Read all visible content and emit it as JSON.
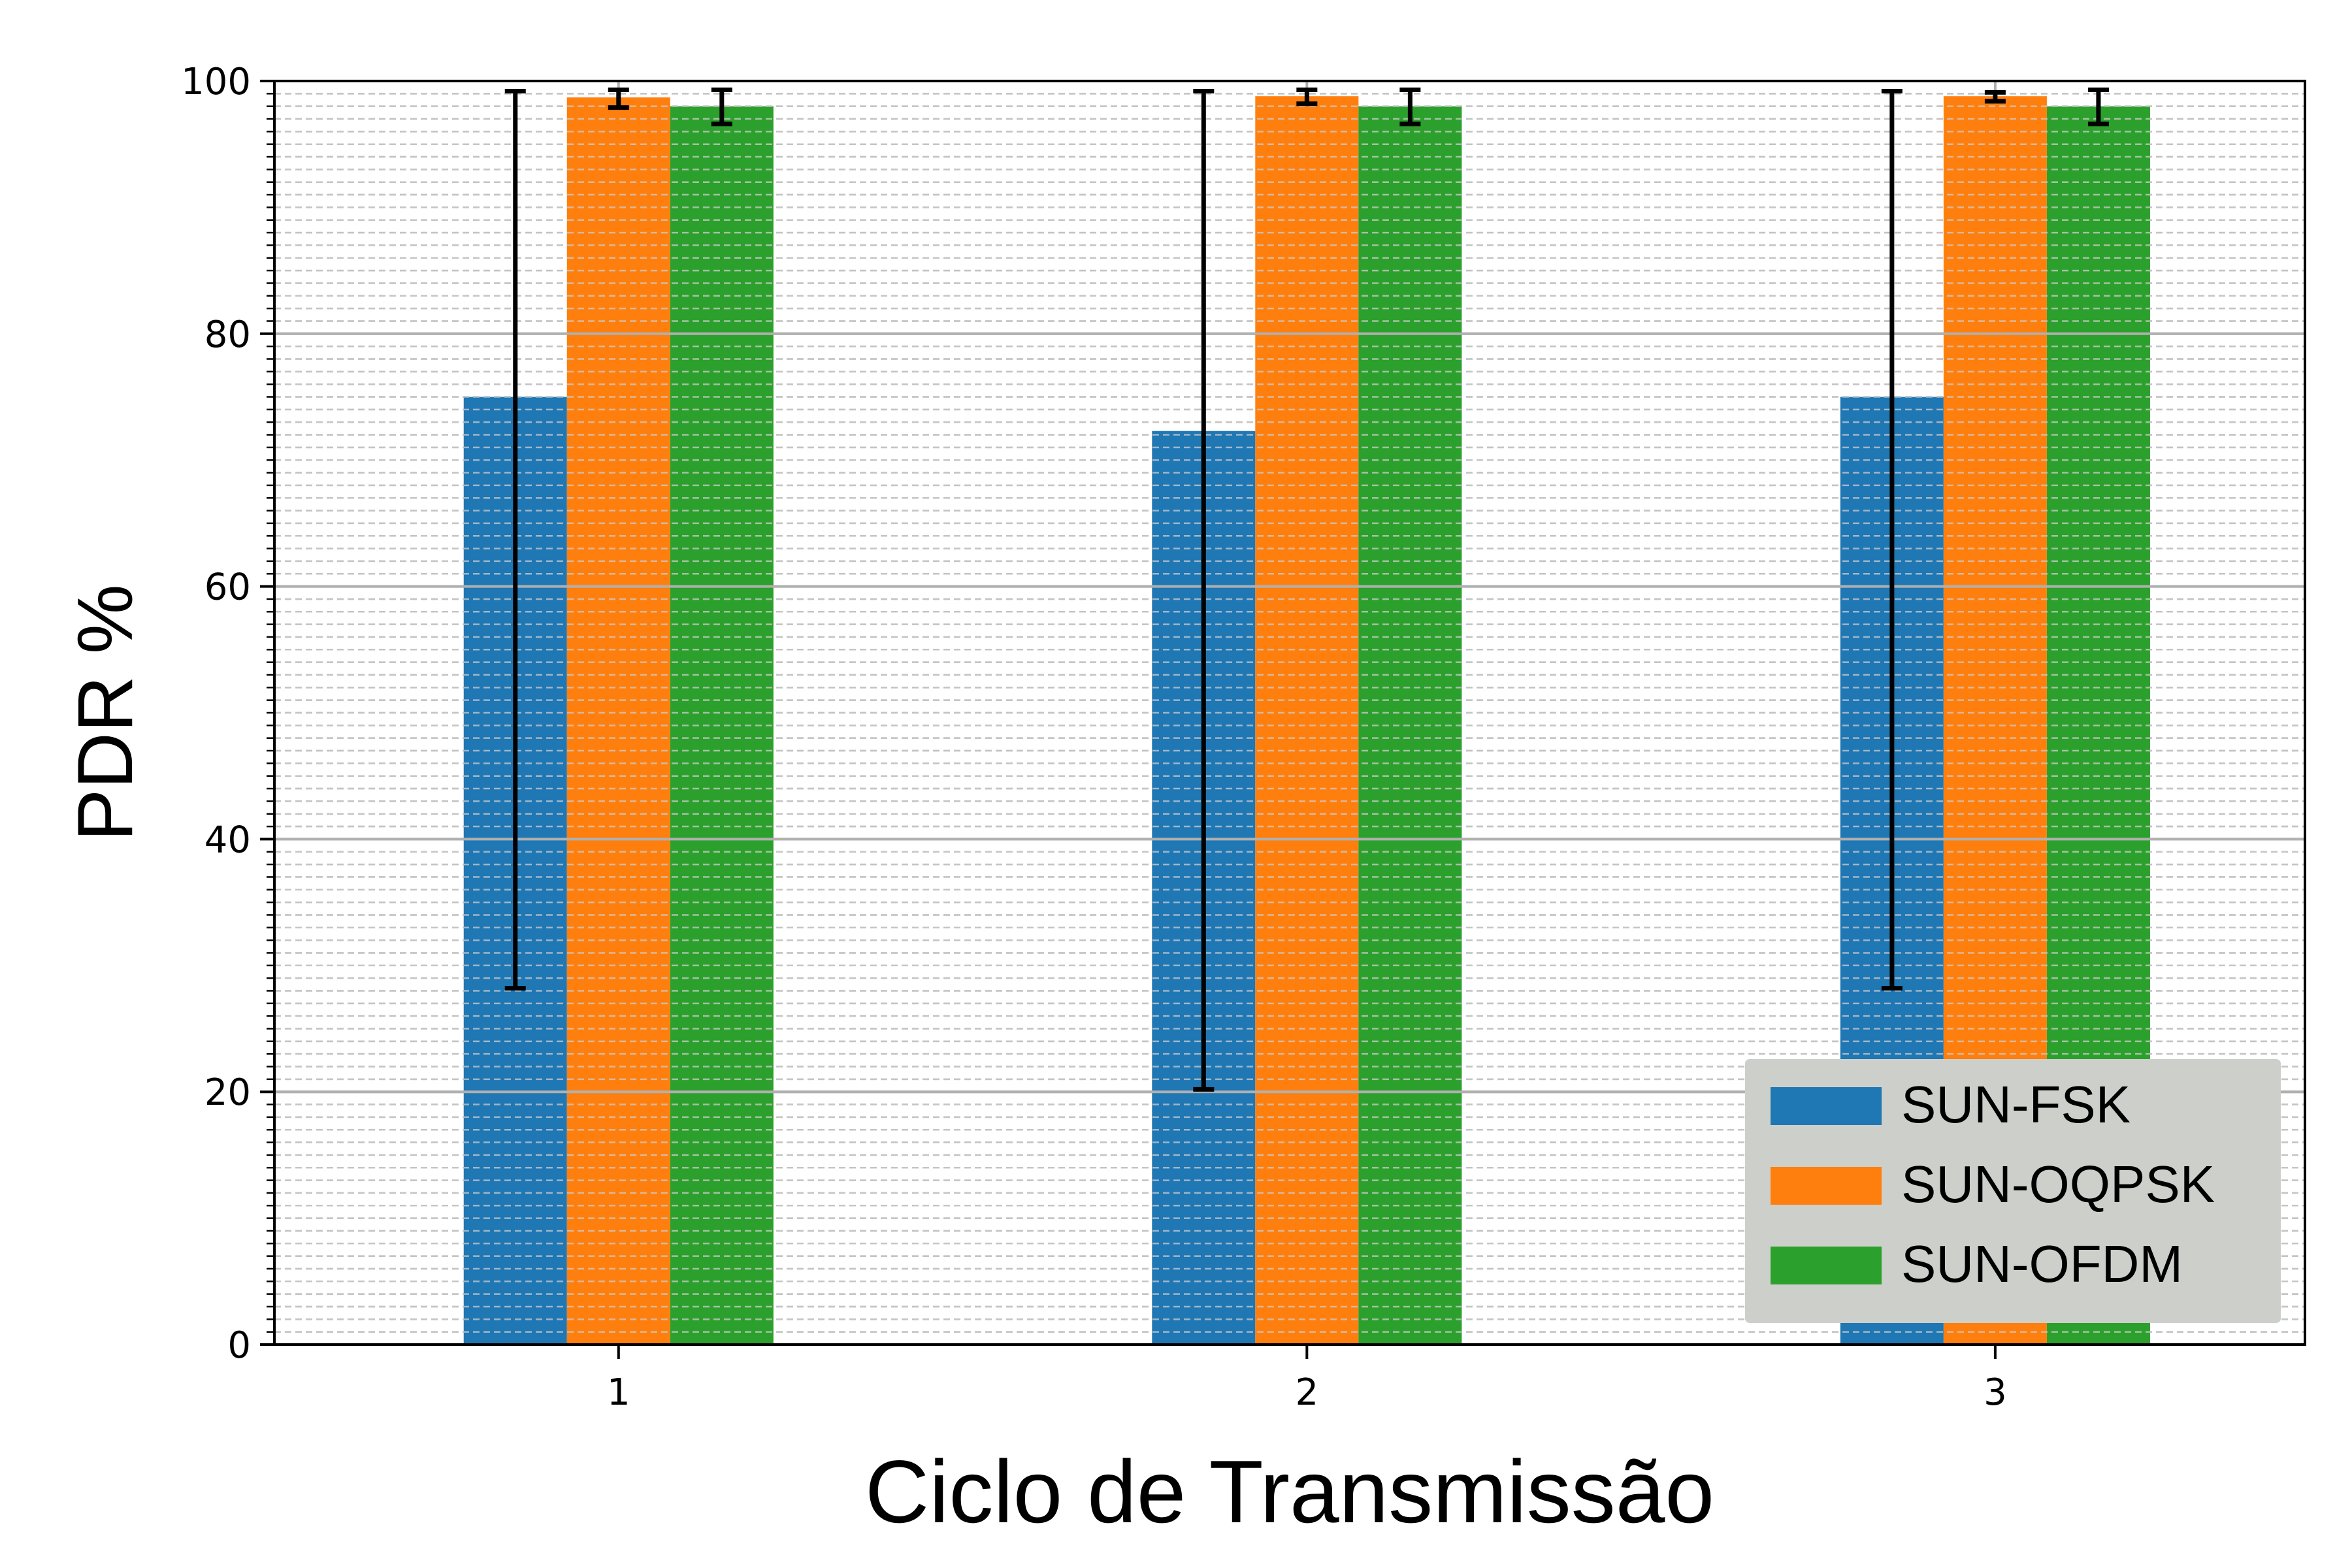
{
  "chart_data": {
    "type": "bar",
    "title": "",
    "xlabel": "Ciclo de Transmissão",
    "ylabel": "PDR %",
    "categories": [
      "1",
      "2",
      "3"
    ],
    "ylim": [
      0,
      100
    ],
    "yticks": [
      "0",
      "20",
      "40",
      "60",
      "80",
      "100"
    ],
    "grid": "major and minor",
    "legend_position": "lower-right",
    "series": [
      {
        "name": "SUN-FSK",
        "color": "#1f77b4",
        "values": [
          75.0,
          72.3,
          75.0
        ],
        "err_low": [
          28.2,
          20.2,
          28.2
        ],
        "err_high": [
          99.2,
          99.2,
          99.2
        ]
      },
      {
        "name": "SUN-OQPSK",
        "color": "#ff7f0e",
        "values": [
          98.7,
          98.8,
          98.8
        ],
        "err_low": [
          97.9,
          98.2,
          98.4
        ],
        "err_high": [
          99.3,
          99.3,
          99.1
        ]
      },
      {
        "name": "SUN-OFDM",
        "color": "#2ca02c",
        "values": [
          98.0,
          98.0,
          98.0
        ],
        "err_low": [
          96.6,
          96.6,
          96.6
        ],
        "err_high": [
          99.3,
          99.3,
          99.3
        ]
      }
    ]
  }
}
